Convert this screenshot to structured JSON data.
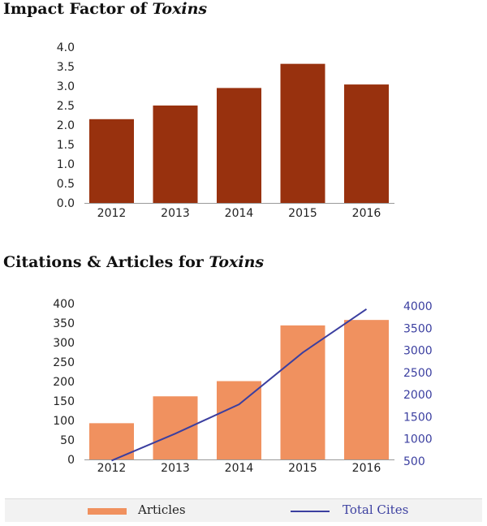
{
  "chart_data": [
    {
      "type": "bar",
      "title_prefix": "Impact Factor of",
      "title_journal": "Toxins",
      "categories": [
        "2012",
        "2013",
        "2014",
        "2015",
        "2016"
      ],
      "values": [
        2.15,
        2.5,
        2.95,
        3.57,
        3.04
      ],
      "yticks": [
        "0.0",
        "0.5",
        "1.0",
        "1.5",
        "2.0",
        "2.5",
        "3.0",
        "3.5",
        "4.0"
      ],
      "ylim": [
        0,
        4
      ],
      "color": "#98310e"
    },
    {
      "type": "bar+line",
      "title_prefix": "Citations & Articles for",
      "title_journal": "Toxins",
      "categories": [
        "2012",
        "2013",
        "2014",
        "2015",
        "2016"
      ],
      "series": [
        {
          "name": "Articles",
          "type": "bar",
          "axis": "left",
          "values": [
            93,
            162,
            201,
            344,
            358
          ],
          "color": "#f0915f"
        },
        {
          "name": "Total Cites",
          "type": "line",
          "axis": "right",
          "values": [
            510,
            1120,
            1780,
            2950,
            3930
          ],
          "color": "#3b3fa0"
        }
      ],
      "yticks_left": [
        "0",
        "50",
        "100",
        "150",
        "200",
        "250",
        "300",
        "350",
        "400"
      ],
      "ylim_left": [
        0,
        400
      ],
      "yticks_right": [
        "500",
        "1000",
        "1500",
        "2000",
        "2500",
        "3000",
        "3500",
        "4000"
      ],
      "ylim_right": [
        500,
        4000
      ],
      "legend": {
        "articles_label": "Articles",
        "cites_label": "Total Cites"
      }
    }
  ]
}
